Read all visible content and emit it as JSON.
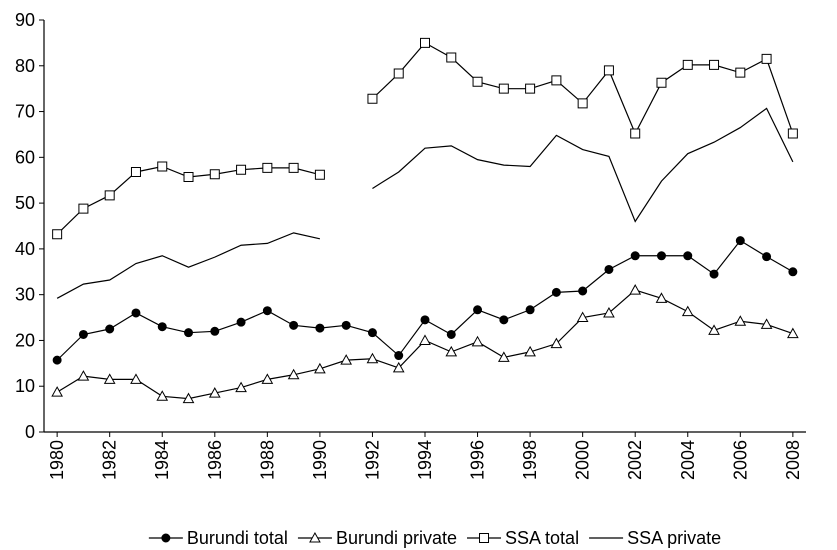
{
  "chart_data": {
    "type": "line",
    "x": [
      1980,
      1981,
      1982,
      1983,
      1984,
      1985,
      1986,
      1987,
      1988,
      1989,
      1990,
      1991,
      1992,
      1993,
      1994,
      1995,
      1996,
      1997,
      1998,
      1999,
      2000,
      2001,
      2002,
      2003,
      2004,
      2005,
      2006,
      2007,
      2008
    ],
    "series": [
      {
        "name": "Burundi total",
        "color": "#000000",
        "marker": "circle",
        "values": [
          15.7,
          21.3,
          22.5,
          26,
          23,
          21.7,
          22,
          24,
          26.5,
          23.3,
          22.7,
          23.3,
          21.7,
          16.7,
          24.5,
          21.3,
          26.7,
          24.5,
          26.7,
          30.5,
          30.8,
          35.5,
          38.5,
          38.5,
          38.5,
          34.5,
          41.8,
          38.3,
          35
        ]
      },
      {
        "name": "Burundi private",
        "color": "#000000",
        "marker": "triangle",
        "values": [
          8.7,
          12.2,
          11.5,
          11.5,
          7.8,
          7.3,
          8.5,
          9.7,
          11.5,
          12.5,
          13.8,
          15.7,
          16,
          14,
          20,
          17.5,
          19.7,
          16.3,
          17.5,
          19.3,
          25,
          26,
          31,
          29.2,
          26.3,
          22.2,
          24.2,
          23.5,
          21.5
        ]
      },
      {
        "name": "SSA total",
        "color": "#000000",
        "marker": "square",
        "values": [
          43.2,
          48.8,
          51.7,
          56.8,
          58,
          55.7,
          56.3,
          57.3,
          57.7,
          57.7,
          56.2,
          null,
          72.8,
          78.3,
          85,
          81.8,
          76.5,
          75,
          75,
          76.8,
          71.8,
          79,
          65.2,
          76.3,
          80.2,
          80.2,
          78.5,
          81.5,
          65.2
        ]
      },
      {
        "name": "SSA private",
        "color": "#000000",
        "marker": "none",
        "values": [
          29.2,
          32.3,
          33.2,
          36.8,
          38.5,
          36,
          38.2,
          40.8,
          41.2,
          43.5,
          42.2,
          null,
          53.2,
          56.8,
          62,
          62.5,
          59.5,
          58.3,
          58,
          64.8,
          61.7,
          60.2,
          46,
          54.8,
          60.8,
          63.3,
          66.5,
          70.7,
          59
        ]
      }
    ],
    "xlim": [
      1979.5,
      2008.5
    ],
    "xticks": [
      1980,
      1982,
      1984,
      1986,
      1988,
      1990,
      1992,
      1994,
      1996,
      1998,
      2000,
      2002,
      2004,
      2006,
      2008
    ],
    "ylim": [
      0,
      90
    ],
    "yticks": [
      0,
      10,
      20,
      30,
      40,
      50,
      60,
      70,
      80,
      90
    ],
    "legend": "bottom"
  }
}
